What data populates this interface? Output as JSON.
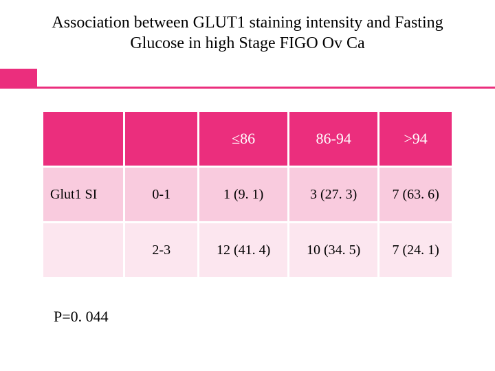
{
  "title": "Association between GLUT1 staining intensity and Fasting Glucose in high Stage FIGO Ov Ca",
  "accent_color": "#eb2e7d",
  "table": {
    "columns": [
      "",
      "",
      "≤86",
      "86-94",
      ">94"
    ],
    "col_widths": [
      "20%",
      "18%",
      "22%",
      "22%",
      "18%"
    ],
    "header_bg": "#eb2e7d",
    "header_color": "#ffffff",
    "row_bg": [
      "#f9cbde",
      "#fce6ef"
    ],
    "rows": [
      {
        "label": "Glut1 SI",
        "group": "0-1",
        "cells": [
          "1 (9. 1)",
          "3 (27. 3)",
          "7 (63. 6)"
        ]
      },
      {
        "label": "",
        "group": "2-3",
        "cells": [
          "12 (41. 4)",
          "10 (34. 5)",
          "7 (24. 1)"
        ]
      }
    ]
  },
  "p_value": "P=0. 044"
}
